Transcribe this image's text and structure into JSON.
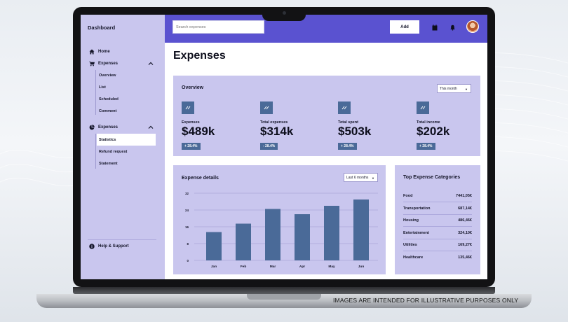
{
  "app": {
    "brand": "Dashboard",
    "page_title": "Expenses"
  },
  "sidebar": {
    "items": [
      {
        "label": "Home",
        "icon": "home-icon"
      },
      {
        "label": "Expenses",
        "icon": "cart-icon"
      },
      {
        "label": "Expenses",
        "icon": "pie-chart-icon"
      }
    ],
    "group1_subitems": [
      "Overview",
      "List",
      "Scheduled",
      "Comment"
    ],
    "group2_subitems": [
      "Statistics",
      "Refund request",
      "Statement"
    ],
    "active_subitem": "Statistics",
    "help_label": "Help & Support"
  },
  "topbar": {
    "search_placeholder": "Search expenses",
    "add_label": "Add",
    "icons": [
      "calendar-icon",
      "bell-icon"
    ],
    "accent_color": "#5a52d0"
  },
  "overview": {
    "title": "Overview",
    "period": "This month",
    "stats": [
      {
        "label": "Expenses",
        "value": "$489k",
        "change": "+ 28.4%"
      },
      {
        "label": "Total expenses",
        "value": "$314k",
        "change": "- 28.4%"
      },
      {
        "label": "Total spent",
        "value": "$503k",
        "change": "+ 28.4%"
      },
      {
        "label": "Total income",
        "value": "$202k",
        "change": "+ 28.4%"
      }
    ]
  },
  "details": {
    "title": "Expense details",
    "period": "Last 6 months"
  },
  "chart_data": {
    "type": "bar",
    "categories": [
      "Jan",
      "Feb",
      "Mar",
      "Apr",
      "May",
      "Jun"
    ],
    "values": [
      13.5,
      17.5,
      24.5,
      22,
      26,
      29
    ],
    "yticks": [
      0,
      8,
      16,
      24,
      32
    ],
    "ylim": [
      0,
      32
    ],
    "grid": true,
    "bar_color": "#4a6a98"
  },
  "top_categories": {
    "title": "Top Expense Categories",
    "rows": [
      {
        "name": "Food",
        "amount": "7441,05€"
      },
      {
        "name": "Transportation",
        "amount": "687,14€"
      },
      {
        "name": "Housing",
        "amount": "486,46€"
      },
      {
        "name": "Entertainment",
        "amount": "324,10€"
      },
      {
        "name": "Utilities",
        "amount": "169,27€"
      },
      {
        "name": "Healthcare",
        "amount": "135,46€"
      }
    ]
  },
  "disclaimer": "IMAGES ARE INTENDED FOR ILLUSTRATIVE PURPOSES ONLY"
}
